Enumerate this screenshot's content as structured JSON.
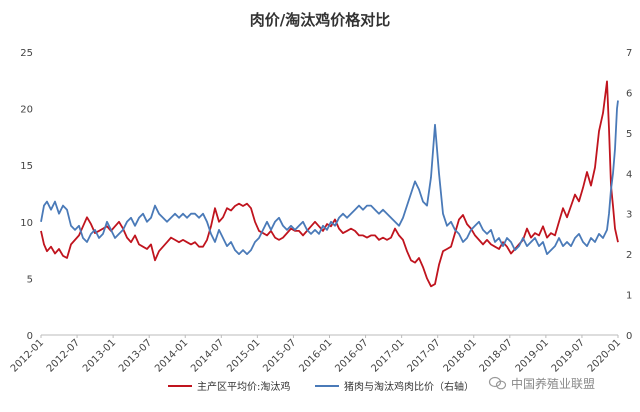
{
  "watermark": "中国养殖业联盟",
  "chart_data": {
    "type": "line",
    "title": "肉价/淘汰鸡价格对比",
    "x_tick_labels": [
      "2012-01",
      "2012-07",
      "2013-01",
      "2013-07",
      "2014-01",
      "2014-07",
      "2015-01",
      "2015-07",
      "2016-01",
      "2016-07",
      "2017-01",
      "2017-07",
      "2018-01",
      "2018-07",
      "2019-01",
      "2019-07",
      "2020-01"
    ],
    "y_left": {
      "min": 0,
      "max": 25,
      "ticks": [
        0,
        5,
        10,
        15,
        20,
        25
      ]
    },
    "y_right": {
      "min": 0,
      "max": 7,
      "ticks": [
        0,
        1,
        2,
        3,
        4,
        5,
        6,
        7
      ]
    },
    "legend_position": "bottom",
    "grid": false,
    "series": [
      {
        "name": "主产区平均价:淘汰鸡",
        "axis": "left",
        "color": "#c0141e",
        "points": [
          [
            0,
            9.2
          ],
          [
            3,
            8.0
          ],
          [
            6,
            7.4
          ],
          [
            10,
            7.8
          ],
          [
            14,
            7.2
          ],
          [
            18,
            7.6
          ],
          [
            22,
            7.0
          ],
          [
            26,
            6.8
          ],
          [
            30,
            8.0
          ],
          [
            34,
            8.4
          ],
          [
            38,
            8.8
          ],
          [
            42,
            9.6
          ],
          [
            46,
            10.4
          ],
          [
            50,
            9.8
          ],
          [
            54,
            9.0
          ],
          [
            58,
            9.2
          ],
          [
            62,
            9.4
          ],
          [
            66,
            9.6
          ],
          [
            70,
            9.2
          ],
          [
            74,
            9.6
          ],
          [
            78,
            10.0
          ],
          [
            82,
            9.4
          ],
          [
            86,
            8.6
          ],
          [
            90,
            8.2
          ],
          [
            94,
            8.8
          ],
          [
            98,
            8.0
          ],
          [
            102,
            7.8
          ],
          [
            106,
            7.6
          ],
          [
            110,
            8.0
          ],
          [
            114,
            6.6
          ],
          [
            118,
            7.4
          ],
          [
            122,
            7.8
          ],
          [
            126,
            8.2
          ],
          [
            130,
            8.6
          ],
          [
            134,
            8.4
          ],
          [
            138,
            8.2
          ],
          [
            142,
            8.4
          ],
          [
            146,
            8.2
          ],
          [
            150,
            8.0
          ],
          [
            154,
            8.2
          ],
          [
            158,
            7.8
          ],
          [
            162,
            7.8
          ],
          [
            166,
            8.4
          ],
          [
            170,
            9.6
          ],
          [
            174,
            11.2
          ],
          [
            178,
            10.0
          ],
          [
            182,
            10.4
          ],
          [
            186,
            11.2
          ],
          [
            190,
            11.0
          ],
          [
            194,
            11.4
          ],
          [
            198,
            11.6
          ],
          [
            202,
            11.4
          ],
          [
            206,
            11.6
          ],
          [
            210,
            11.2
          ],
          [
            214,
            10.0
          ],
          [
            218,
            9.2
          ],
          [
            222,
            9.0
          ],
          [
            226,
            8.8
          ],
          [
            230,
            9.2
          ],
          [
            234,
            8.6
          ],
          [
            238,
            8.4
          ],
          [
            242,
            8.6
          ],
          [
            246,
            9.0
          ],
          [
            250,
            9.4
          ],
          [
            254,
            9.2
          ],
          [
            258,
            9.2
          ],
          [
            262,
            8.8
          ],
          [
            266,
            9.2
          ],
          [
            270,
            9.6
          ],
          [
            274,
            10.0
          ],
          [
            278,
            9.6
          ],
          [
            282,
            9.2
          ],
          [
            286,
            9.8
          ],
          [
            290,
            9.6
          ],
          [
            294,
            10.2
          ],
          [
            298,
            9.4
          ],
          [
            302,
            9.0
          ],
          [
            306,
            9.2
          ],
          [
            310,
            9.4
          ],
          [
            314,
            9.2
          ],
          [
            318,
            8.8
          ],
          [
            322,
            8.8
          ],
          [
            326,
            8.6
          ],
          [
            330,
            8.8
          ],
          [
            334,
            8.8
          ],
          [
            338,
            8.4
          ],
          [
            342,
            8.6
          ],
          [
            346,
            8.4
          ],
          [
            350,
            8.6
          ],
          [
            354,
            9.4
          ],
          [
            358,
            8.8
          ],
          [
            362,
            8.4
          ],
          [
            366,
            7.4
          ],
          [
            370,
            6.6
          ],
          [
            374,
            6.4
          ],
          [
            378,
            6.8
          ],
          [
            382,
            6.0
          ],
          [
            386,
            5.0
          ],
          [
            390,
            4.3
          ],
          [
            394,
            4.5
          ],
          [
            398,
            6.2
          ],
          [
            402,
            7.4
          ],
          [
            406,
            7.6
          ],
          [
            410,
            7.8
          ],
          [
            414,
            9.0
          ],
          [
            418,
            10.2
          ],
          [
            422,
            10.6
          ],
          [
            426,
            9.8
          ],
          [
            430,
            9.4
          ],
          [
            434,
            8.8
          ],
          [
            438,
            8.4
          ],
          [
            442,
            8.0
          ],
          [
            446,
            8.4
          ],
          [
            450,
            8.0
          ],
          [
            454,
            7.8
          ],
          [
            458,
            7.6
          ],
          [
            462,
            8.2
          ],
          [
            466,
            7.8
          ],
          [
            470,
            7.2
          ],
          [
            474,
            7.6
          ],
          [
            478,
            8.0
          ],
          [
            482,
            8.4
          ],
          [
            486,
            9.4
          ],
          [
            490,
            8.6
          ],
          [
            494,
            9.0
          ],
          [
            498,
            8.8
          ],
          [
            502,
            9.6
          ],
          [
            506,
            8.6
          ],
          [
            510,
            9.0
          ],
          [
            514,
            8.8
          ],
          [
            518,
            10.0
          ],
          [
            522,
            11.2
          ],
          [
            526,
            10.4
          ],
          [
            530,
            11.4
          ],
          [
            534,
            12.4
          ],
          [
            538,
            11.8
          ],
          [
            542,
            13.0
          ],
          [
            546,
            14.4
          ],
          [
            550,
            13.2
          ],
          [
            554,
            14.8
          ],
          [
            558,
            18.0
          ],
          [
            562,
            19.6
          ],
          [
            566,
            22.4
          ],
          [
            568,
            18.2
          ],
          [
            570,
            13.2
          ],
          [
            572,
            11.4
          ],
          [
            574,
            9.4
          ],
          [
            577,
            8.2
          ]
        ]
      },
      {
        "name": "猪肉与淘汰鸡肉比价（右轴）",
        "axis": "right",
        "color": "#4a7ab8",
        "points": [
          [
            0,
            2.8
          ],
          [
            3,
            3.2
          ],
          [
            6,
            3.3
          ],
          [
            10,
            3.1
          ],
          [
            14,
            3.3
          ],
          [
            18,
            3.0
          ],
          [
            22,
            3.2
          ],
          [
            26,
            3.1
          ],
          [
            30,
            2.7
          ],
          [
            34,
            2.6
          ],
          [
            38,
            2.7
          ],
          [
            42,
            2.4
          ],
          [
            46,
            2.3
          ],
          [
            50,
            2.5
          ],
          [
            54,
            2.6
          ],
          [
            58,
            2.4
          ],
          [
            62,
            2.5
          ],
          [
            66,
            2.8
          ],
          [
            70,
            2.6
          ],
          [
            74,
            2.4
          ],
          [
            78,
            2.5
          ],
          [
            82,
            2.6
          ],
          [
            86,
            2.8
          ],
          [
            90,
            2.9
          ],
          [
            94,
            2.7
          ],
          [
            98,
            2.9
          ],
          [
            102,
            3.0
          ],
          [
            106,
            2.8
          ],
          [
            110,
            2.9
          ],
          [
            114,
            3.2
          ],
          [
            118,
            3.0
          ],
          [
            122,
            2.9
          ],
          [
            126,
            2.8
          ],
          [
            130,
            2.9
          ],
          [
            134,
            3.0
          ],
          [
            138,
            2.9
          ],
          [
            142,
            3.0
          ],
          [
            146,
            2.9
          ],
          [
            150,
            3.0
          ],
          [
            154,
            3.0
          ],
          [
            158,
            2.9
          ],
          [
            162,
            3.0
          ],
          [
            166,
            2.8
          ],
          [
            170,
            2.5
          ],
          [
            174,
            2.3
          ],
          [
            178,
            2.6
          ],
          [
            182,
            2.4
          ],
          [
            186,
            2.2
          ],
          [
            190,
            2.3
          ],
          [
            194,
            2.1
          ],
          [
            198,
            2.0
          ],
          [
            202,
            2.1
          ],
          [
            206,
            2.0
          ],
          [
            210,
            2.1
          ],
          [
            214,
            2.3
          ],
          [
            218,
            2.4
          ],
          [
            222,
            2.6
          ],
          [
            226,
            2.8
          ],
          [
            230,
            2.6
          ],
          [
            234,
            2.8
          ],
          [
            238,
            2.9
          ],
          [
            242,
            2.7
          ],
          [
            246,
            2.6
          ],
          [
            250,
            2.7
          ],
          [
            254,
            2.6
          ],
          [
            258,
            2.7
          ],
          [
            262,
            2.8
          ],
          [
            266,
            2.6
          ],
          [
            270,
            2.5
          ],
          [
            274,
            2.6
          ],
          [
            278,
            2.5
          ],
          [
            282,
            2.7
          ],
          [
            286,
            2.6
          ],
          [
            290,
            2.8
          ],
          [
            294,
            2.7
          ],
          [
            298,
            2.9
          ],
          [
            302,
            3.0
          ],
          [
            306,
            2.9
          ],
          [
            310,
            3.0
          ],
          [
            314,
            3.1
          ],
          [
            318,
            3.2
          ],
          [
            322,
            3.1
          ],
          [
            326,
            3.2
          ],
          [
            330,
            3.2
          ],
          [
            334,
            3.1
          ],
          [
            338,
            3.0
          ],
          [
            342,
            3.1
          ],
          [
            346,
            3.0
          ],
          [
            350,
            2.9
          ],
          [
            354,
            2.8
          ],
          [
            358,
            2.7
          ],
          [
            362,
            2.9
          ],
          [
            366,
            3.2
          ],
          [
            370,
            3.5
          ],
          [
            374,
            3.8
          ],
          [
            378,
            3.6
          ],
          [
            382,
            3.3
          ],
          [
            386,
            3.2
          ],
          [
            390,
            3.9
          ],
          [
            394,
            5.2
          ],
          [
            398,
            4.0
          ],
          [
            402,
            3.0
          ],
          [
            406,
            2.7
          ],
          [
            410,
            2.8
          ],
          [
            414,
            2.6
          ],
          [
            418,
            2.5
          ],
          [
            422,
            2.3
          ],
          [
            426,
            2.4
          ],
          [
            430,
            2.6
          ],
          [
            434,
            2.7
          ],
          [
            438,
            2.8
          ],
          [
            442,
            2.6
          ],
          [
            446,
            2.5
          ],
          [
            450,
            2.6
          ],
          [
            454,
            2.3
          ],
          [
            458,
            2.4
          ],
          [
            462,
            2.2
          ],
          [
            466,
            2.4
          ],
          [
            470,
            2.3
          ],
          [
            474,
            2.1
          ],
          [
            478,
            2.2
          ],
          [
            482,
            2.4
          ],
          [
            486,
            2.2
          ],
          [
            490,
            2.3
          ],
          [
            494,
            2.4
          ],
          [
            498,
            2.2
          ],
          [
            502,
            2.3
          ],
          [
            506,
            2.0
          ],
          [
            510,
            2.1
          ],
          [
            514,
            2.2
          ],
          [
            518,
            2.4
          ],
          [
            522,
            2.2
          ],
          [
            526,
            2.3
          ],
          [
            530,
            2.2
          ],
          [
            534,
            2.4
          ],
          [
            538,
            2.5
          ],
          [
            542,
            2.3
          ],
          [
            546,
            2.2
          ],
          [
            550,
            2.4
          ],
          [
            554,
            2.3
          ],
          [
            558,
            2.5
          ],
          [
            562,
            2.4
          ],
          [
            566,
            2.6
          ],
          [
            568,
            3.0
          ],
          [
            570,
            3.6
          ],
          [
            572,
            4.0
          ],
          [
            574,
            4.6
          ],
          [
            576,
            5.6
          ],
          [
            577,
            5.8
          ]
        ]
      }
    ]
  }
}
